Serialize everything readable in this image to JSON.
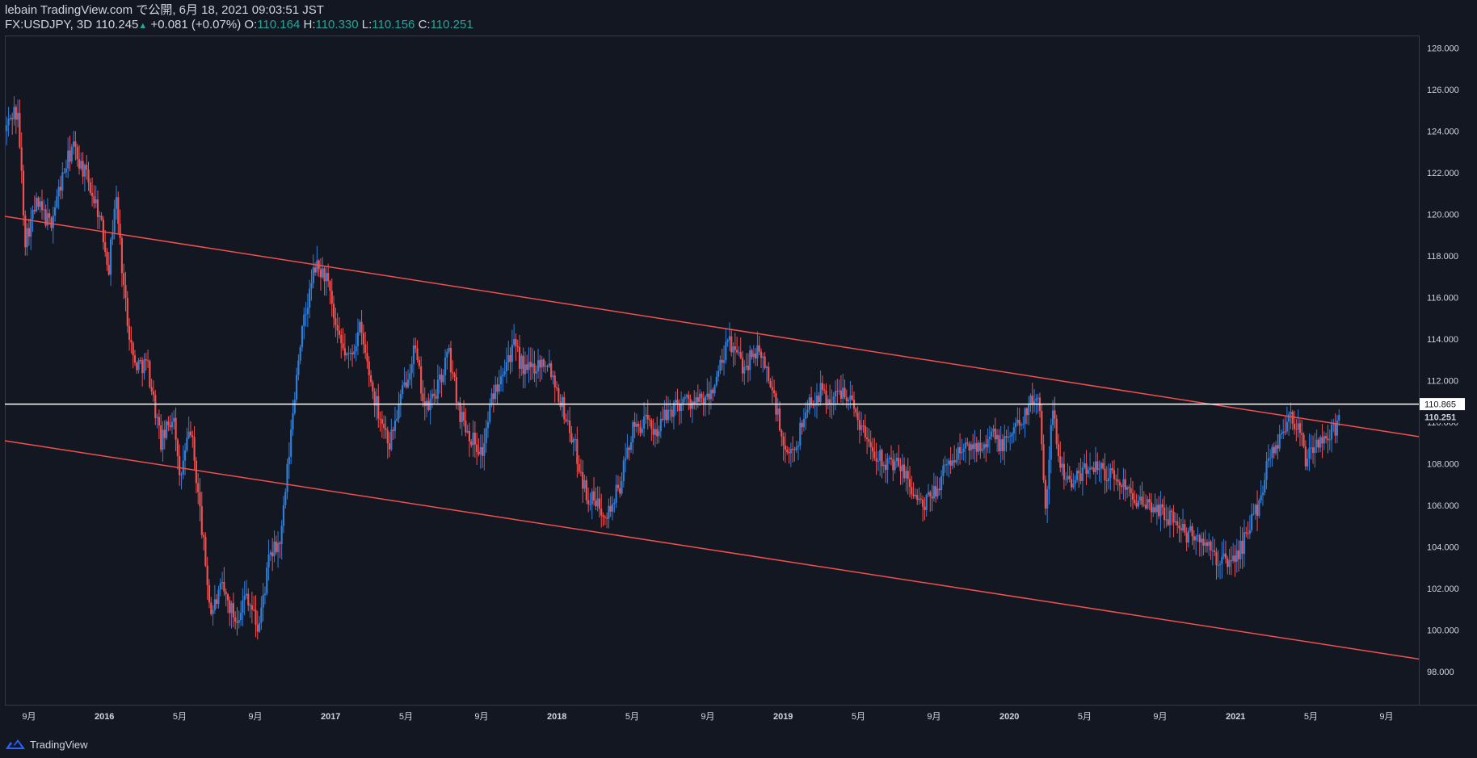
{
  "header": {
    "publisher": "lebain TradingView.com で公開, 6月 18, 2021 09:03:51 JST",
    "symbol": "FX:USDJPY, 3D",
    "last": "110.245",
    "change_arrow": "▲",
    "change": "+0.081 (+0.07%)",
    "open_label": "O:",
    "open": "110.164",
    "high_label": "H:",
    "high": "110.330",
    "low_label": "L:",
    "low": "110.156",
    "close_label": "C:",
    "close": "110.251"
  },
  "footer": {
    "brand": "TradingView"
  },
  "colors": {
    "background": "#131722",
    "up": "#2f7ed8",
    "down": "#f0504f",
    "trendline": "#f0504f",
    "hline": "#ffffff",
    "axis_text": "#d1d4dc",
    "border": "#363a45"
  },
  "chart_data": {
    "type": "candlestick",
    "title": "FX:USDJPY, 3D",
    "ylim": [
      96.4,
      128.6
    ],
    "xlim": [
      2015.56,
      2021.81
    ],
    "y_ticks": [
      "98.000",
      "100.000",
      "102.000",
      "104.000",
      "106.000",
      "108.000",
      "110.000",
      "112.000",
      "114.000",
      "116.000",
      "118.000",
      "120.000",
      "122.000",
      "124.000",
      "126.000",
      "128.000"
    ],
    "x_ticks": [
      {
        "label": "9月",
        "t": 2015.667,
        "bold": false
      },
      {
        "label": "2016",
        "t": 2016.0,
        "bold": true
      },
      {
        "label": "5月",
        "t": 2016.333,
        "bold": false
      },
      {
        "label": "9月",
        "t": 2016.667,
        "bold": false
      },
      {
        "label": "2017",
        "t": 2017.0,
        "bold": true
      },
      {
        "label": "5月",
        "t": 2017.333,
        "bold": false
      },
      {
        "label": "9月",
        "t": 2017.667,
        "bold": false
      },
      {
        "label": "2018",
        "t": 2018.0,
        "bold": true
      },
      {
        "label": "5月",
        "t": 2018.333,
        "bold": false
      },
      {
        "label": "9月",
        "t": 2018.667,
        "bold": false
      },
      {
        "label": "2019",
        "t": 2019.0,
        "bold": true
      },
      {
        "label": "5月",
        "t": 2019.333,
        "bold": false
      },
      {
        "label": "9月",
        "t": 2019.667,
        "bold": false
      },
      {
        "label": "2020",
        "t": 2020.0,
        "bold": true
      },
      {
        "label": "5月",
        "t": 2020.333,
        "bold": false
      },
      {
        "label": "9月",
        "t": 2020.667,
        "bold": false
      },
      {
        "label": "2021",
        "t": 2021.0,
        "bold": true
      },
      {
        "label": "5月",
        "t": 2021.333,
        "bold": false
      },
      {
        "label": "9月",
        "t": 2021.667,
        "bold": false
      }
    ],
    "horizontal_line": {
      "value": 110.865,
      "label": "110.865"
    },
    "price_label": {
      "value": 110.251,
      "label": "110.251"
    },
    "trendlines": [
      {
        "name": "upper-channel",
        "t1": 2015.56,
        "v1": 119.9,
        "t2": 2021.81,
        "v2": 109.3
      },
      {
        "name": "lower-channel",
        "t1": 2015.56,
        "v1": 109.1,
        "t2": 2021.81,
        "v2": 98.6
      }
    ],
    "price_path": [
      [
        2015.56,
        124.0
      ],
      [
        2015.6,
        125.0
      ],
      [
        2015.62,
        124.5
      ],
      [
        2015.65,
        118.8
      ],
      [
        2015.7,
        120.5
      ],
      [
        2015.76,
        119.5
      ],
      [
        2015.82,
        122.0
      ],
      [
        2015.86,
        123.3
      ],
      [
        2015.92,
        121.8
      ],
      [
        2015.97,
        120.3
      ],
      [
        2016.02,
        117.5
      ],
      [
        2016.05,
        121.0
      ],
      [
        2016.09,
        116.0
      ],
      [
        2016.13,
        112.8
      ],
      [
        2016.19,
        112.8
      ],
      [
        2016.25,
        109.0
      ],
      [
        2016.31,
        110.5
      ],
      [
        2016.33,
        107.0
      ],
      [
        2016.38,
        109.8
      ],
      [
        2016.42,
        106.0
      ],
      [
        2016.47,
        100.8
      ],
      [
        2016.52,
        102.0
      ],
      [
        2016.58,
        100.5
      ],
      [
        2016.63,
        101.8
      ],
      [
        2016.68,
        100.0
      ],
      [
        2016.73,
        103.5
      ],
      [
        2016.78,
        104.3
      ],
      [
        2016.86,
        113.5
      ],
      [
        2016.93,
        117.5
      ],
      [
        2016.98,
        117.0
      ],
      [
        2017.03,
        114.0
      ],
      [
        2017.08,
        113.0
      ],
      [
        2017.13,
        114.5
      ],
      [
        2017.19,
        111.3
      ],
      [
        2017.26,
        109.0
      ],
      [
        2017.32,
        111.5
      ],
      [
        2017.37,
        113.6
      ],
      [
        2017.42,
        110.5
      ],
      [
        2017.48,
        111.8
      ],
      [
        2017.52,
        113.4
      ],
      [
        2017.57,
        110.5
      ],
      [
        2017.62,
        109.3
      ],
      [
        2017.67,
        108.5
      ],
      [
        2017.71,
        111.0
      ],
      [
        2017.76,
        112.7
      ],
      [
        2017.81,
        113.6
      ],
      [
        2017.86,
        112.4
      ],
      [
        2017.91,
        112.8
      ],
      [
        2017.96,
        113.0
      ],
      [
        2018.03,
        110.6
      ],
      [
        2018.08,
        108.8
      ],
      [
        2018.13,
        106.5
      ],
      [
        2018.18,
        106.0
      ],
      [
        2018.23,
        105.7
      ],
      [
        2018.28,
        107.0
      ],
      [
        2018.33,
        109.5
      ],
      [
        2018.38,
        110.0
      ],
      [
        2018.44,
        109.6
      ],
      [
        2018.5,
        110.6
      ],
      [
        2018.56,
        111.1
      ],
      [
        2018.61,
        110.9
      ],
      [
        2018.67,
        111.1
      ],
      [
        2018.72,
        112.5
      ],
      [
        2018.76,
        113.9
      ],
      [
        2018.83,
        112.6
      ],
      [
        2018.87,
        113.5
      ],
      [
        2018.92,
        112.8
      ],
      [
        2018.97,
        110.7
      ],
      [
        2019.01,
        108.2
      ],
      [
        2019.06,
        109.0
      ],
      [
        2019.11,
        110.9
      ],
      [
        2019.17,
        111.5
      ],
      [
        2019.21,
        111.0
      ],
      [
        2019.27,
        111.7
      ],
      [
        2019.32,
        110.5
      ],
      [
        2019.37,
        109.2
      ],
      [
        2019.42,
        108.4
      ],
      [
        2019.47,
        108.0
      ],
      [
        2019.52,
        107.8
      ],
      [
        2019.57,
        106.8
      ],
      [
        2019.62,
        105.8
      ],
      [
        2019.67,
        106.7
      ],
      [
        2019.72,
        107.8
      ],
      [
        2019.77,
        108.5
      ],
      [
        2019.82,
        108.8
      ],
      [
        2019.87,
        109.0
      ],
      [
        2019.92,
        109.4
      ],
      [
        2019.97,
        108.8
      ],
      [
        2020.03,
        109.8
      ],
      [
        2020.09,
        110.8
      ],
      [
        2020.13,
        111.4
      ],
      [
        2020.16,
        106.0
      ],
      [
        2020.19,
        110.5
      ],
      [
        2020.23,
        107.8
      ],
      [
        2020.28,
        107.0
      ],
      [
        2020.33,
        107.6
      ],
      [
        2020.38,
        108.1
      ],
      [
        2020.43,
        107.5
      ],
      [
        2020.48,
        107.2
      ],
      [
        2020.54,
        106.8
      ],
      [
        2020.59,
        105.8
      ],
      [
        2020.63,
        106.0
      ],
      [
        2020.68,
        105.6
      ],
      [
        2020.73,
        105.3
      ],
      [
        2020.78,
        104.6
      ],
      [
        2020.83,
        104.5
      ],
      [
        2020.87,
        104.0
      ],
      [
        2020.92,
        103.4
      ],
      [
        2020.97,
        103.2
      ],
      [
        2021.02,
        103.8
      ],
      [
        2021.06,
        105.0
      ],
      [
        2021.1,
        106.0
      ],
      [
        2021.15,
        108.5
      ],
      [
        2021.2,
        109.3
      ],
      [
        2021.24,
        110.5
      ],
      [
        2021.28,
        109.6
      ],
      [
        2021.31,
        108.2
      ],
      [
        2021.35,
        108.8
      ],
      [
        2021.39,
        109.2
      ],
      [
        2021.43,
        109.5
      ],
      [
        2021.46,
        110.25
      ]
    ]
  }
}
